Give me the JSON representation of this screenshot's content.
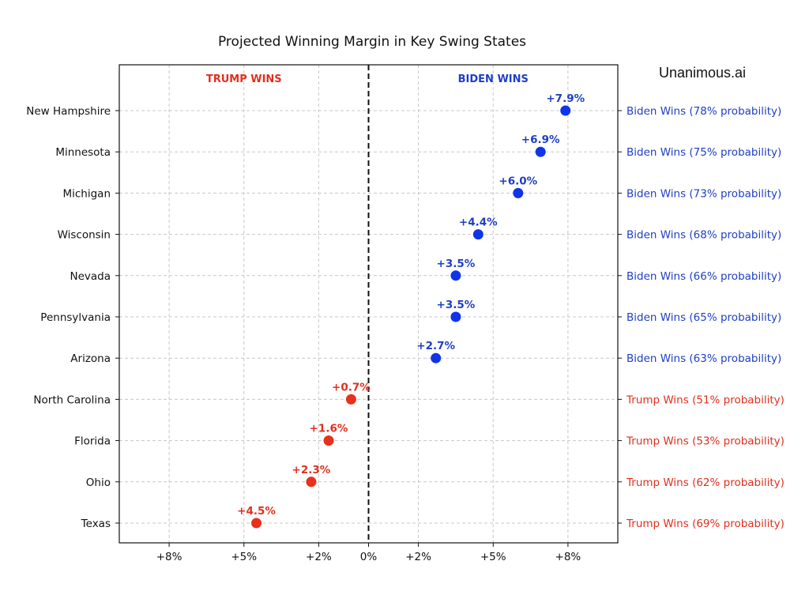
{
  "chart_data": {
    "type": "scatter",
    "title": "Projected Winning Margin in Key Swing States",
    "brand": "Unanimous.ai",
    "left_header": "TRUMP WINS",
    "right_header": "BIDEN WINS",
    "xlim": [
      -10,
      10
    ],
    "x_ticks": [
      {
        "value": -8,
        "label": "+8%"
      },
      {
        "value": -5,
        "label": "+5%"
      },
      {
        "value": -2,
        "label": "+2%"
      },
      {
        "value": 0,
        "label": "0%"
      },
      {
        "value": 2,
        "label": "+2%"
      },
      {
        "value": 5,
        "label": "+5%"
      },
      {
        "value": 8,
        "label": "+8%"
      }
    ],
    "grid": true,
    "colors": {
      "biden": "#1034e8",
      "biden_text": "#1f3fc4",
      "trump": "#e8301c",
      "trump_text": "#e0301e"
    },
    "points": [
      {
        "state": "New Hampshire",
        "x": 7.9,
        "label": "+7.9%",
        "party": "biden",
        "probability_text": "Biden Wins (78% probability)"
      },
      {
        "state": "Minnesota",
        "x": 6.9,
        "label": "+6.9%",
        "party": "biden",
        "probability_text": "Biden Wins (75% probability)"
      },
      {
        "state": "Michigan",
        "x": 6.0,
        "label": "+6.0%",
        "party": "biden",
        "probability_text": "Biden Wins (73% probability)"
      },
      {
        "state": "Wisconsin",
        "x": 4.4,
        "label": "+4.4%",
        "party": "biden",
        "probability_text": "Biden Wins (68% probability)"
      },
      {
        "state": "Nevada",
        "x": 3.5,
        "label": "+3.5%",
        "party": "biden",
        "probability_text": "Biden Wins (66% probability)"
      },
      {
        "state": "Pennsylvania",
        "x": 3.5,
        "label": "+3.5%",
        "party": "biden",
        "probability_text": "Biden Wins (65% probability)"
      },
      {
        "state": "Arizona",
        "x": 2.7,
        "label": "+2.7%",
        "party": "biden",
        "probability_text": "Biden Wins (63% probability)"
      },
      {
        "state": "North Carolina",
        "x": -0.7,
        "label": "+0.7%",
        "party": "trump",
        "probability_text": "Trump Wins (51% probability)"
      },
      {
        "state": "Florida",
        "x": -1.6,
        "label": "+1.6%",
        "party": "trump",
        "probability_text": "Trump Wins (53% probability)"
      },
      {
        "state": "Ohio",
        "x": -2.3,
        "label": "+2.3%",
        "party": "trump",
        "probability_text": "Trump Wins (62% probability)"
      },
      {
        "state": "Texas",
        "x": -4.5,
        "label": "+4.5%",
        "party": "trump",
        "probability_text": "Trump Wins (69% probability)"
      }
    ]
  }
}
